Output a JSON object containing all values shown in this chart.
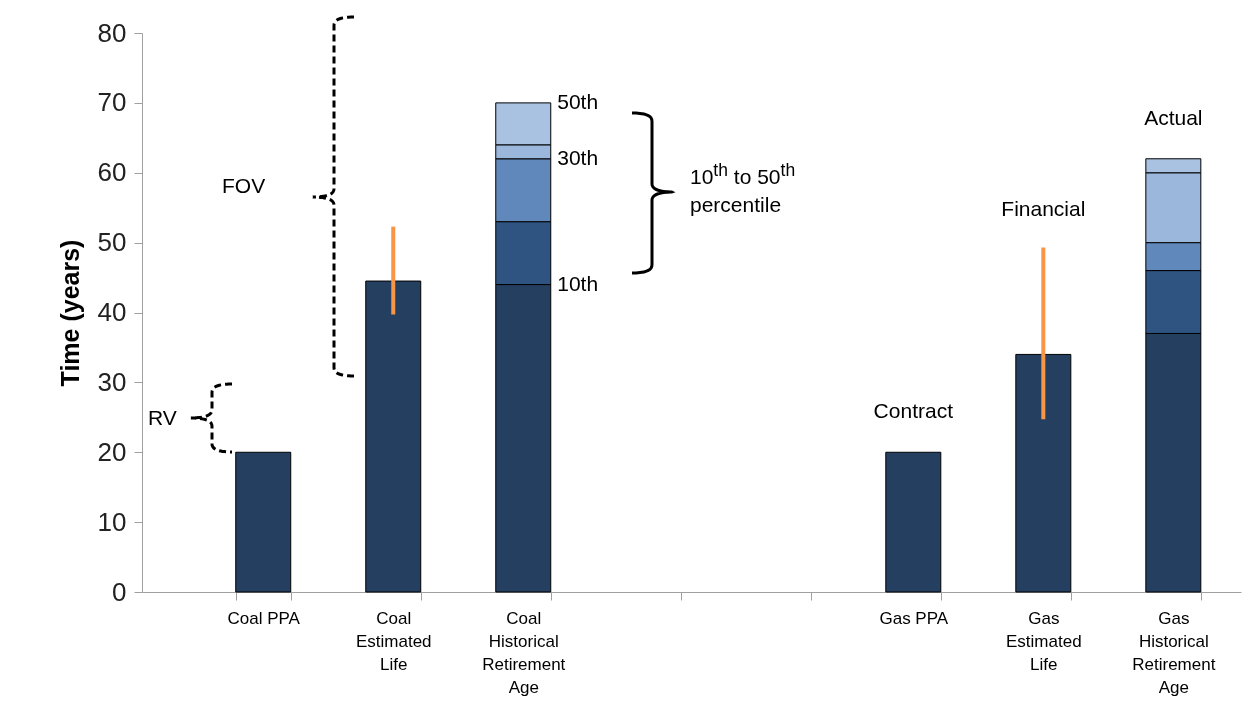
{
  "chart_data": {
    "type": "bar",
    "stacked": true,
    "ylabel": "Time (years)",
    "categories": [
      "Coal PPA",
      "Coal Estimated Life",
      "Coal Historical Retirement Age",
      null,
      null,
      "Gas PPA",
      "Gas Estimated Life",
      "Gas Historical Retirement Age"
    ],
    "ylim": [
      0,
      80
    ],
    "yticks": [
      0,
      10,
      20,
      30,
      40,
      50,
      60,
      70,
      80
    ],
    "grid": false,
    "legend": false,
    "series": [
      {
        "color": "#253f60",
        "values": [
          20,
          44.5,
          44,
          null,
          null,
          20,
          34,
          37
        ],
        "errors": [
          null,
          [
            40,
            52
          ],
          null,
          null,
          null,
          null,
          [
            25,
            49
          ],
          null
        ]
      },
      {
        "color": "#2f5482",
        "values": [
          null,
          null,
          9,
          null,
          null,
          null,
          null,
          9
        ]
      },
      {
        "color": "#6088bb",
        "values": [
          null,
          null,
          9,
          null,
          null,
          null,
          null,
          4
        ]
      },
      {
        "color": "#9bb7dc",
        "values": [
          null,
          null,
          2,
          null,
          null,
          null,
          null,
          10
        ]
      },
      {
        "color": "#a9c2e2",
        "values": [
          null,
          null,
          6,
          null,
          null,
          null,
          null,
          2
        ]
      }
    ],
    "annotations": [
      {
        "text": "50th",
        "x": "Coal Historical Retirement Age",
        "y": 70
      },
      {
        "text": "30th",
        "x": "Coal Historical Retirement Age",
        "y": 62
      },
      {
        "text": "10th",
        "x": "Coal Historical Retirement Age",
        "y": 44
      },
      "10$^{th}$ to 50$^{th}$ percentile",
      "FOV",
      "RV",
      {
        "text": "Contract",
        "x": "Gas PPA",
        "y": 20
      },
      {
        "text": "Financial",
        "x": "Gas Estimated Life",
        "y": 49
      },
      {
        "text": "Actual",
        "x": "Gas Historical Retirement Age",
        "y": 62
      }
    ]
  }
}
